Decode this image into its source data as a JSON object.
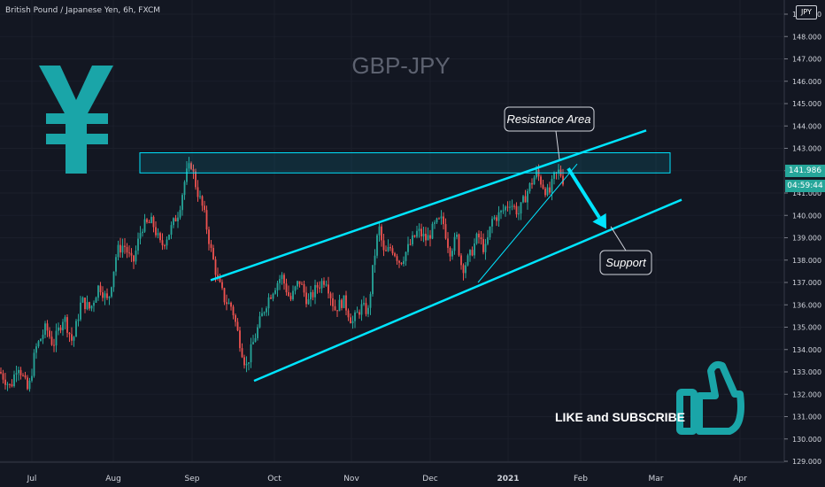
{
  "header": {
    "symbol_title": "British Pound / Japanese Yen, 6h, FXCM",
    "currency": "JPY"
  },
  "watermark": {
    "text": "GBP-JPY"
  },
  "annotations": {
    "resistance": "Resistance Area",
    "support": "Support",
    "cta": "LIKE and SUBSCRIBE"
  },
  "icons": {
    "currency_symbol": "yen-sign-icon",
    "cta_icon": "thumbs-up-icon"
  },
  "colors": {
    "background": "#131722",
    "accent": "#00e5ff",
    "icon_teal": "#1aa5a8",
    "up": "#26a69a",
    "down": "#ef5350",
    "text": "#d1d4dc",
    "watermark": "#5d6270"
  },
  "price_axis": {
    "ticks": [
      "149.000",
      "148.000",
      "147.000",
      "146.000",
      "145.000",
      "144.000",
      "143.000",
      "142.000",
      "141.000",
      "140.000",
      "139.000",
      "138.000",
      "137.000",
      "136.000",
      "135.000",
      "134.000",
      "133.000",
      "132.000",
      "131.000",
      "130.000",
      "129.000"
    ],
    "last_price": "141.986",
    "countdown": "04:59:44"
  },
  "time_axis": {
    "labels": [
      "Jul",
      "Aug",
      "Sep",
      "Oct",
      "Nov",
      "Dec",
      "2021",
      "Feb",
      "Mar",
      "Apr"
    ]
  },
  "chart_data": {
    "type": "candlestick",
    "title": "GBP-JPY",
    "ylim": [
      128.6,
      149.7
    ],
    "path": [
      [
        0,
        133.0
      ],
      [
        12,
        132.3
      ],
      [
        20,
        133.4
      ],
      [
        32,
        132.1
      ],
      [
        40,
        134.0
      ],
      [
        52,
        135.0
      ],
      [
        60,
        134.2
      ],
      [
        72,
        135.5
      ],
      [
        82,
        134.3
      ],
      [
        92,
        136.2
      ],
      [
        102,
        135.8
      ],
      [
        112,
        136.9
      ],
      [
        122,
        136.1
      ],
      [
        132,
        138.4
      ],
      [
        140,
        138.7
      ],
      [
        150,
        137.8
      ],
      [
        160,
        139.5
      ],
      [
        172,
        139.7
      ],
      [
        182,
        138.6
      ],
      [
        192,
        139.3
      ],
      [
        202,
        140.2
      ],
      [
        210,
        141.8
      ],
      [
        216,
        142.3
      ],
      [
        222,
        141.2
      ],
      [
        230,
        140.2
      ],
      [
        238,
        138.5
      ],
      [
        246,
        137.1
      ],
      [
        254,
        136.2
      ],
      [
        262,
        135.9
      ],
      [
        270,
        134.5
      ],
      [
        278,
        133.2
      ],
      [
        286,
        134.3
      ],
      [
        294,
        135.3
      ],
      [
        302,
        136.2
      ],
      [
        310,
        136.8
      ],
      [
        318,
        137.3
      ],
      [
        328,
        136.2
      ],
      [
        338,
        137.1
      ],
      [
        348,
        136.1
      ],
      [
        358,
        136.8
      ],
      [
        368,
        137.2
      ],
      [
        378,
        135.8
      ],
      [
        388,
        136.2
      ],
      [
        398,
        135.2
      ],
      [
        408,
        135.9
      ],
      [
        416,
        135.7
      ],
      [
        422,
        137.9
      ],
      [
        428,
        139.5
      ],
      [
        434,
        138.2
      ],
      [
        442,
        138.6
      ],
      [
        452,
        137.9
      ],
      [
        462,
        138.6
      ],
      [
        472,
        139.3
      ],
      [
        482,
        138.9
      ],
      [
        492,
        139.6
      ],
      [
        500,
        139.8
      ],
      [
        508,
        138.4
      ],
      [
        516,
        139.0
      ],
      [
        522,
        137.6
      ],
      [
        530,
        138.1
      ],
      [
        540,
        139.1
      ],
      [
        548,
        138.4
      ],
      [
        556,
        139.8
      ],
      [
        566,
        140.1
      ],
      [
        576,
        140.6
      ],
      [
        586,
        140.1
      ],
      [
        596,
        141.1
      ],
      [
        606,
        141.9
      ],
      [
        614,
        141.3
      ],
      [
        620,
        140.9
      ],
      [
        626,
        141.7
      ],
      [
        632,
        142.0
      ],
      [
        638,
        141.4
      ]
    ],
    "levels": {
      "resistance_zone": [
        141.9,
        142.8
      ],
      "upper_channel": [
        [
          238,
          137.1
        ],
        [
          730,
          143.8
        ]
      ],
      "lower_channel": [
        [
          287,
          132.6
        ],
        [
          770,
          140.7
        ]
      ],
      "inner_trendline": [
        [
          540,
          137.0
        ],
        [
          652,
          142.3
        ]
      ],
      "projection_arrow": [
        [
          642,
          142.1
        ],
        [
          685,
          139.4
        ]
      ]
    }
  }
}
